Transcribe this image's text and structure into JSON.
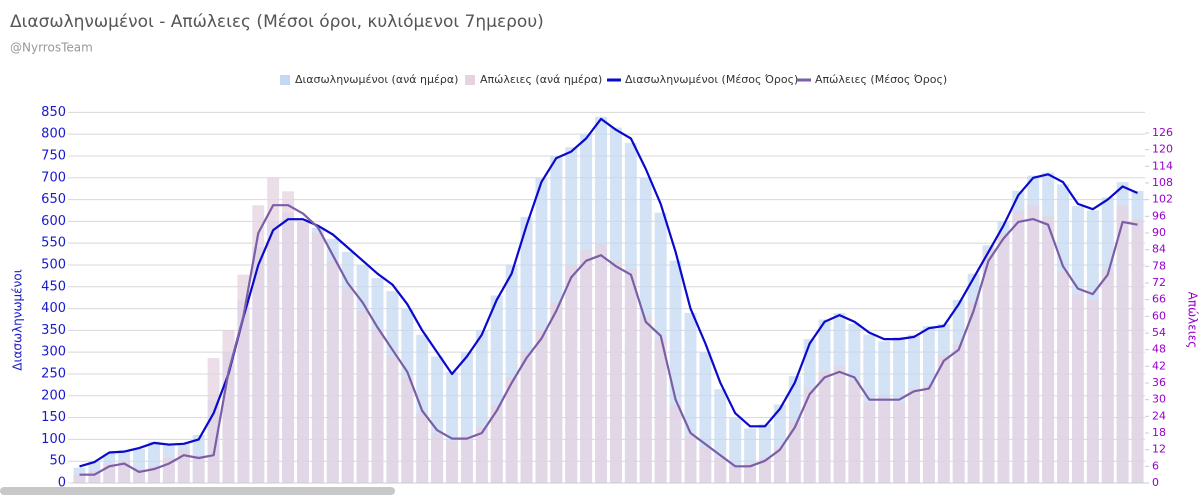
{
  "chart_data": {
    "type": "bar_line_dual",
    "title": "Διασωληνωμένοι - Απώλειες (Μέσοι όροι, κυλιόμενοι 7ημερου)",
    "subtitle": "@NyrrosTeam",
    "y_label": "Διασωληνωμένοι",
    "y2_label": "Απώλειες",
    "ylim": [
      0,
      860
    ],
    "yticks": [
      0,
      50,
      100,
      150,
      200,
      250,
      300,
      350,
      400,
      450,
      500,
      550,
      600,
      650,
      700,
      750,
      800,
      850
    ],
    "y2lim": [
      0,
      135
    ],
    "y2ticks": [
      0,
      6,
      12,
      18,
      24,
      30,
      36,
      42,
      48,
      54,
      60,
      66,
      72,
      78,
      84,
      90,
      96,
      102,
      108,
      114,
      120,
      126
    ],
    "grid": true,
    "legend": "top",
    "series": [
      {
        "name": "Διασωληνωμένοι (ανά ημέρα)",
        "type": "bar",
        "axis": "y",
        "color": "#c5d8f3",
        "values": [
          35,
          50,
          68,
          75,
          78,
          95,
          85,
          92,
          110,
          190,
          300,
          420,
          540,
          600,
          620,
          598,
          585,
          560,
          530,
          500,
          470,
          440,
          400,
          340,
          290,
          255,
          300,
          350,
          430,
          500,
          610,
          700,
          750,
          770,
          800,
          840,
          815,
          780,
          700,
          620,
          510,
          390,
          300,
          215,
          150,
          125,
          135,
          180,
          245,
          330,
          375,
          390,
          365,
          340,
          325,
          335,
          340,
          360,
          365,
          420,
          480,
          545,
          600,
          670,
          705,
          712,
          685,
          635,
          625,
          655,
          690,
          670
        ]
      },
      {
        "name": "Απώλειες (ανά ημέρα)",
        "type": "bar",
        "axis": "y2",
        "color": "#e6d3e0",
        "values": [
          3,
          4,
          7,
          8,
          5,
          6,
          9,
          12,
          10,
          45,
          55,
          75,
          100,
          110,
          105,
          95,
          90,
          80,
          70,
          62,
          55,
          46,
          38,
          25,
          18,
          15,
          17,
          20,
          28,
          38,
          47,
          55,
          65,
          78,
          84,
          86,
          80,
          77,
          60,
          52,
          28,
          17,
          13,
          9,
          6,
          7,
          9,
          13,
          22,
          34,
          40,
          42,
          37,
          29,
          31,
          29,
          34,
          35,
          46,
          50,
          65,
          84,
          90,
          98,
          100,
          96,
          76,
          68,
          66,
          77,
          100,
          95
        ]
      },
      {
        "name": "Διασωληνωμένοι (Μέσος Όρος)",
        "type": "line",
        "axis": "y",
        "color": "#0a0acc",
        "values": [
          38,
          48,
          70,
          72,
          80,
          92,
          88,
          90,
          100,
          160,
          250,
          380,
          500,
          580,
          605,
          605,
          590,
          570,
          540,
          510,
          480,
          455,
          410,
          350,
          300,
          250,
          290,
          340,
          420,
          480,
          590,
          690,
          745,
          760,
          790,
          835,
          810,
          790,
          720,
          640,
          530,
          400,
          320,
          230,
          160,
          130,
          130,
          170,
          230,
          320,
          370,
          385,
          370,
          345,
          330,
          330,
          335,
          355,
          360,
          410,
          470,
          530,
          590,
          660,
          700,
          708,
          690,
          640,
          628,
          650,
          680,
          665
        ]
      },
      {
        "name": "Απώλειες (Μέσος Όρος)",
        "type": "line",
        "axis": "y2",
        "color": "#7b5ea7",
        "values": [
          3,
          3,
          6,
          7,
          4,
          5,
          7,
          10,
          9,
          10,
          40,
          60,
          90,
          100,
          100,
          97,
          92,
          82,
          72,
          65,
          56,
          48,
          40,
          26,
          19,
          16,
          16,
          18,
          26,
          36,
          45,
          52,
          62,
          74,
          80,
          82,
          78,
          75,
          58,
          53,
          30,
          18,
          14,
          10,
          6,
          6,
          8,
          12,
          20,
          32,
          38,
          40,
          38,
          30,
          30,
          30,
          33,
          34,
          44,
          48,
          62,
          80,
          88,
          94,
          95,
          93,
          78,
          70,
          68,
          75,
          94,
          93
        ]
      }
    ]
  }
}
